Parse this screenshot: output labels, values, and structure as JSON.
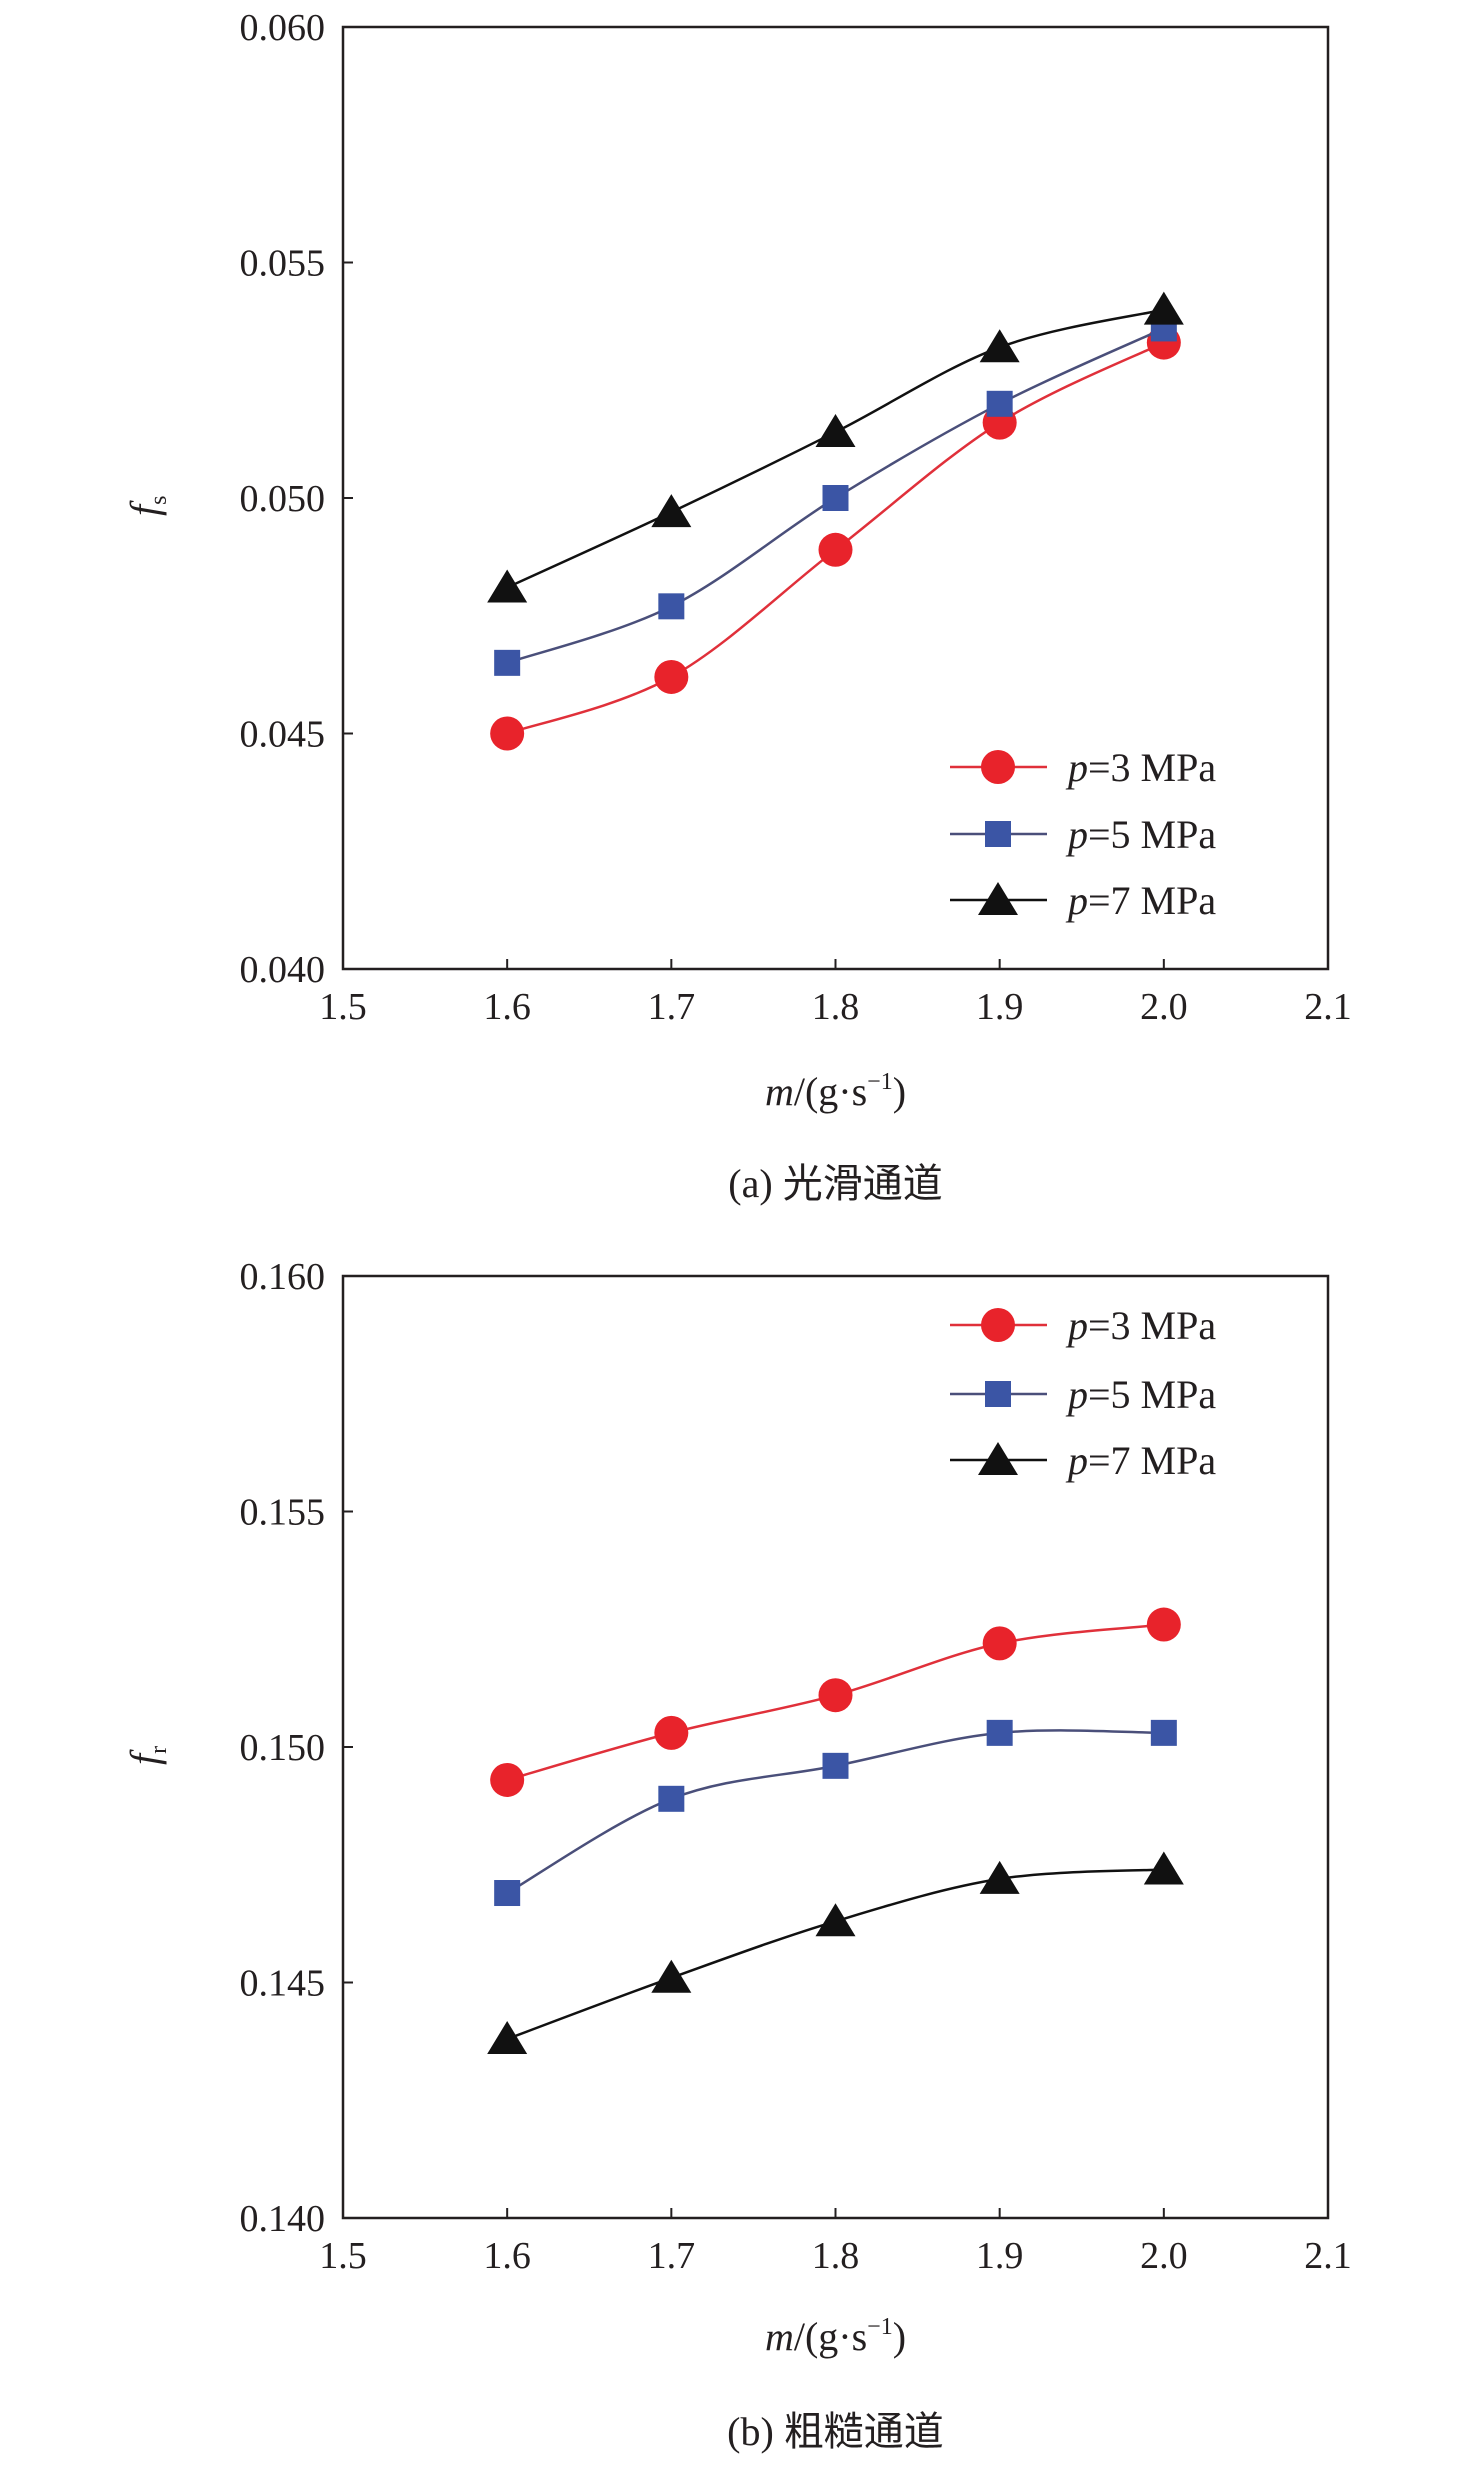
{
  "chart_data": [
    {
      "type": "line",
      "caption": "(a) 光滑通道",
      "ylabel_main": "f",
      "ylabel_sub": "s",
      "xlabel_main": "m",
      "xlabel_rest": "/(g·s",
      "xlabel_sup": "−1",
      "xlabel_close": ")",
      "xlim": [
        1.5,
        2.1
      ],
      "ylim": [
        0.04,
        0.06
      ],
      "xticks": [
        "1.5",
        "1.6",
        "1.7",
        "1.8",
        "1.9",
        "2.0",
        "2.1"
      ],
      "yticks": [
        "0.040",
        "0.045",
        "0.050",
        "0.055",
        "0.060"
      ],
      "legend_position": "lower-right",
      "x": [
        1.6,
        1.7,
        1.8,
        1.9,
        2.0
      ],
      "series": [
        {
          "name_var": "p",
          "name_rest": "=3 MPa",
          "marker": "circle",
          "color": "#e8232b",
          "line_color": "#e0303a",
          "values": [
            0.045,
            0.0462,
            0.0489,
            0.0516,
            0.0533
          ]
        },
        {
          "name_var": "p",
          "name_rest": "=5 MPa",
          "marker": "square",
          "color": "#3b55a5",
          "line_color": "#4a4f7a",
          "values": [
            0.0465,
            0.0477,
            0.05,
            0.052,
            0.0536
          ]
        },
        {
          "name_var": "p",
          "name_rest": "=7 MPa",
          "marker": "triangle",
          "color": "#111111",
          "line_color": "#111111",
          "values": [
            0.0481,
            0.0497,
            0.0514,
            0.0532,
            0.054
          ]
        }
      ]
    },
    {
      "type": "line",
      "caption": "(b) 粗糙通道",
      "ylabel_main": "f",
      "ylabel_sub": "r",
      "xlabel_main": "m",
      "xlabel_rest": "/(g·s",
      "xlabel_sup": "−1",
      "xlabel_close": ")",
      "xlim": [
        1.5,
        2.1
      ],
      "ylim": [
        0.14,
        0.16
      ],
      "xticks": [
        "1.5",
        "1.6",
        "1.7",
        "1.8",
        "1.9",
        "2.0",
        "2.1"
      ],
      "yticks": [
        "0.140",
        "0.145",
        "0.150",
        "0.155",
        "0.160"
      ],
      "legend_position": "top-right",
      "x": [
        1.6,
        1.7,
        1.8,
        1.9,
        2.0
      ],
      "series": [
        {
          "name_var": "p",
          "name_rest": "=3 MPa",
          "marker": "circle",
          "color": "#e8232b",
          "line_color": "#e0303a",
          "values": [
            0.1493,
            0.1503,
            0.1511,
            0.1522,
            0.1526
          ]
        },
        {
          "name_var": "p",
          "name_rest": "=5 MPa",
          "marker": "square",
          "color": "#3b55a5",
          "line_color": "#4a4f7a",
          "values": [
            0.1469,
            0.1489,
            0.1496,
            0.1503,
            0.1503
          ]
        },
        {
          "name_var": "p",
          "name_rest": "=7 MPa",
          "marker": "triangle",
          "color": "#111111",
          "line_color": "#111111",
          "values": [
            0.1438,
            0.1451,
            0.1463,
            0.1472,
            0.1474
          ]
        }
      ]
    }
  ]
}
